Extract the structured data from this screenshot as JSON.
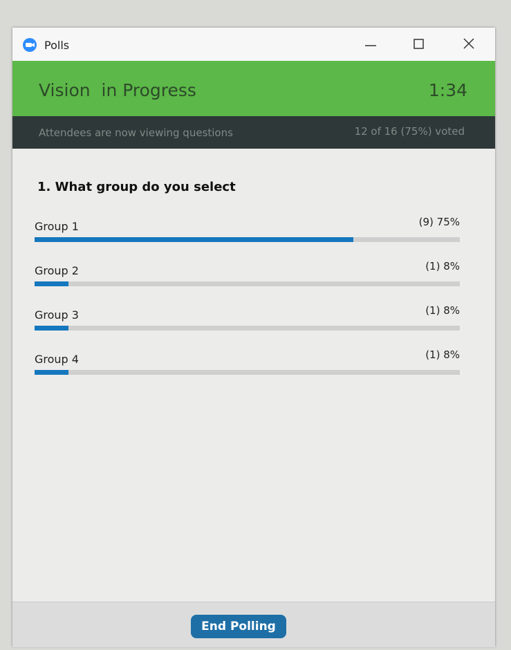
{
  "window": {
    "title": "Polls"
  },
  "header": {
    "title": "Vision  in Progress",
    "timer": "1:34"
  },
  "status": {
    "message": "Attendees are now viewing questions",
    "votes": "12 of 16 (75%) voted"
  },
  "question": {
    "text": "1. What group do you select"
  },
  "results": {
    "categories": [
      "Group 1",
      "Group 2",
      "Group 3",
      "Group 4"
    ],
    "values": [
      75,
      8,
      8,
      8
    ],
    "value_labels": [
      "(9) 75%",
      "(1) 8%",
      "(1) 8%",
      "(1) 8%"
    ],
    "color": "#1577bd"
  },
  "footer": {
    "button": "End Polling"
  }
}
